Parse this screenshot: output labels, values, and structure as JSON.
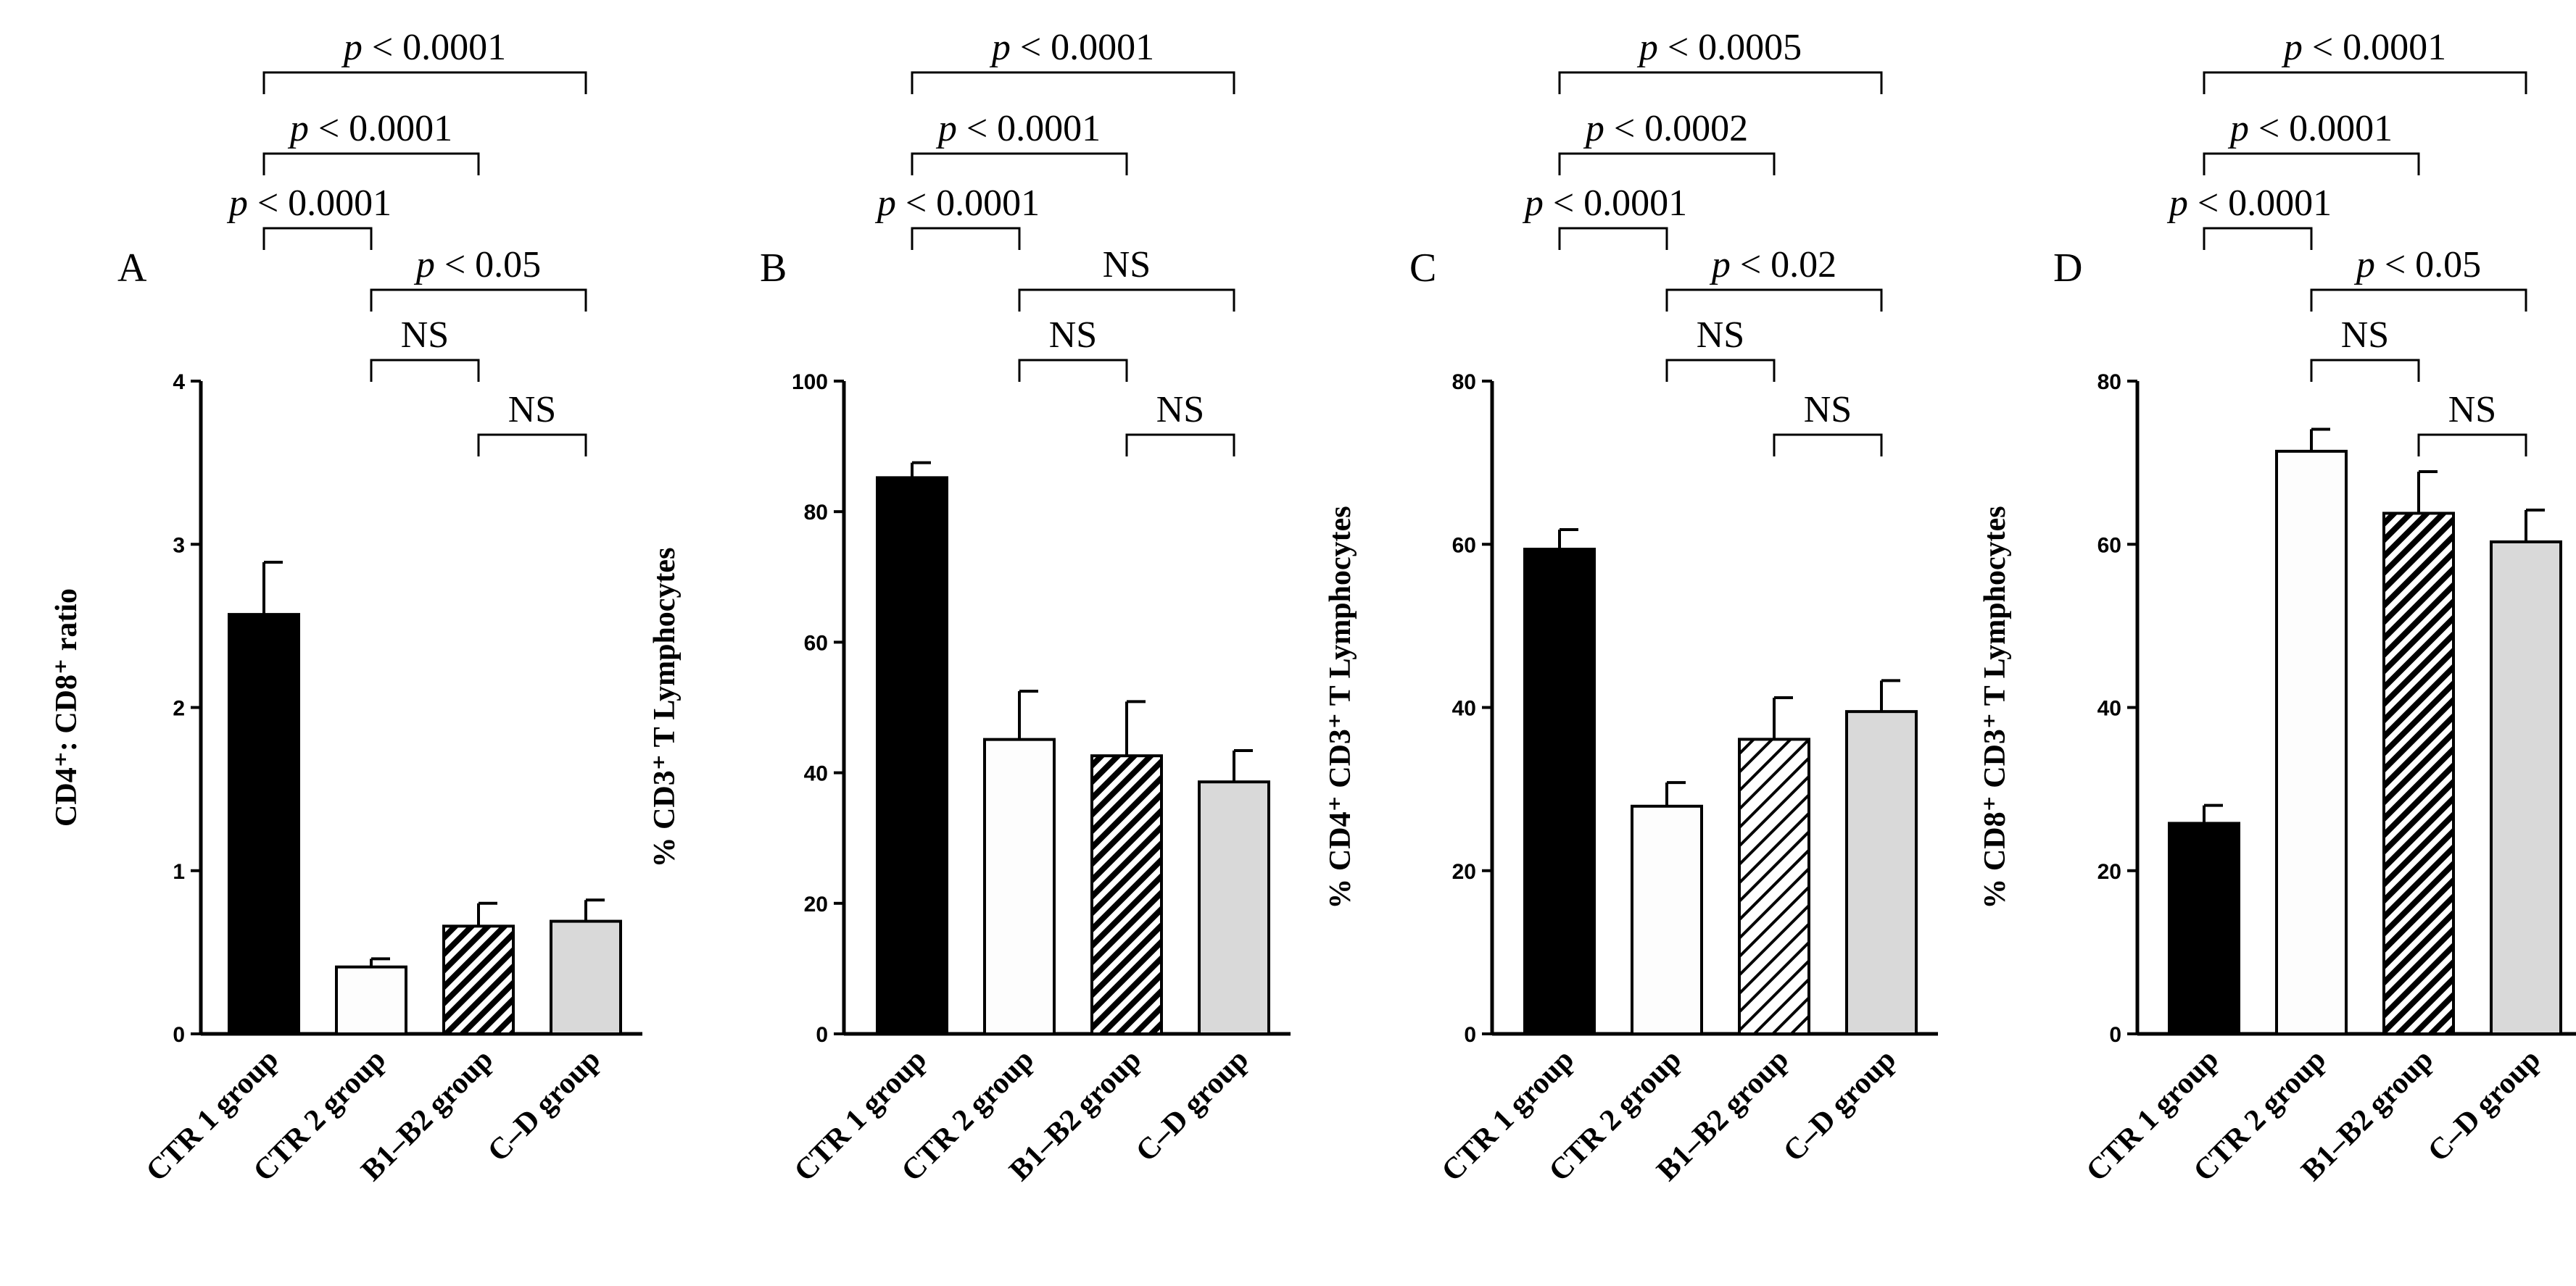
{
  "chart_data": [
    {
      "type": "bar",
      "panel": "A",
      "ylabel": "CD4⁺: CD8⁺ ratio",
      "ylim": [
        0,
        4
      ],
      "yticks": [
        0,
        1,
        2,
        3,
        4
      ],
      "categories": [
        "CTR 1 group",
        "CTR 2 group",
        "B1–B2 group",
        "C–D group"
      ],
      "values": [
        2.57,
        0.41,
        0.66,
        0.69
      ],
      "errors": [
        0.32,
        0.05,
        0.14,
        0.13
      ],
      "comparisons": [
        {
          "from": 0,
          "to": 3,
          "label": "p < 0.0001"
        },
        {
          "from": 0,
          "to": 2,
          "label": "p < 0.0001"
        },
        {
          "from": 0,
          "to": 1,
          "label": "p < 0.0001"
        },
        {
          "from": 1,
          "to": 3,
          "label": "p < 0.05"
        },
        {
          "from": 1,
          "to": 2,
          "label": "NS"
        },
        {
          "from": 2,
          "to": 3,
          "label": "NS"
        }
      ]
    },
    {
      "type": "bar",
      "panel": "B",
      "ylabel": "% CD3⁺ T Lymphocytes",
      "ylim": [
        0,
        100
      ],
      "yticks": [
        0,
        20,
        40,
        60,
        80,
        100
      ],
      "categories": [
        "CTR 1 group",
        "CTR 2 group",
        "B1–B2 group",
        "C–D group"
      ],
      "values": [
        85.2,
        45.1,
        42.6,
        38.6
      ],
      "errors": [
        2.3,
        7.4,
        8.3,
        4.8
      ],
      "comparisons": [
        {
          "from": 0,
          "to": 3,
          "label": "p < 0.0001"
        },
        {
          "from": 0,
          "to": 2,
          "label": "p < 0.0001"
        },
        {
          "from": 0,
          "to": 1,
          "label": "p < 0.0001"
        },
        {
          "from": 1,
          "to": 3,
          "label": "NS"
        },
        {
          "from": 1,
          "to": 2,
          "label": "NS"
        },
        {
          "from": 2,
          "to": 3,
          "label": "NS"
        }
      ]
    },
    {
      "type": "bar",
      "panel": "C",
      "ylabel": "% CD4⁺ CD3⁺ T Lymphocytes",
      "ylim": [
        0,
        80
      ],
      "yticks": [
        0,
        20,
        40,
        60,
        80
      ],
      "categories": [
        "CTR 1 group",
        "CTR 2 group",
        "B1–B2 group",
        "C–D group"
      ],
      "values": [
        59.4,
        27.9,
        36.1,
        39.5
      ],
      "errors": [
        2.4,
        2.9,
        5.1,
        3.8
      ],
      "comparisons": [
        {
          "from": 0,
          "to": 3,
          "label": "p < 0.0005"
        },
        {
          "from": 0,
          "to": 2,
          "label": "p < 0.0002"
        },
        {
          "from": 0,
          "to": 1,
          "label": "p < 0.0001"
        },
        {
          "from": 1,
          "to": 3,
          "label": "p < 0.02"
        },
        {
          "from": 1,
          "to": 2,
          "label": "NS"
        },
        {
          "from": 2,
          "to": 3,
          "label": "NS"
        }
      ]
    },
    {
      "type": "bar",
      "panel": "D",
      "ylabel": "% CD8⁺ CD3⁺ T Lymphocytes",
      "ylim": [
        0,
        80
      ],
      "yticks": [
        0,
        20,
        40,
        60,
        80
      ],
      "categories": [
        "CTR 1 group",
        "CTR 2 group",
        "B1–B2 group",
        "C–D group"
      ],
      "values": [
        25.8,
        71.4,
        63.8,
        60.3
      ],
      "errors": [
        2.2,
        2.7,
        5.1,
        3.9
      ],
      "comparisons": [
        {
          "from": 0,
          "to": 3,
          "label": "p < 0.0001"
        },
        {
          "from": 0,
          "to": 2,
          "label": "p < 0.0001"
        },
        {
          "from": 0,
          "to": 1,
          "label": "p < 0.0001"
        },
        {
          "from": 1,
          "to": 3,
          "label": "p < 0.05"
        },
        {
          "from": 1,
          "to": 2,
          "label": "NS"
        },
        {
          "from": 2,
          "to": 3,
          "label": "NS"
        }
      ]
    }
  ],
  "styles": {
    "bar_fills": [
      "#000000",
      "#fdfdfd",
      "hatch-dense",
      "#d9d9d9"
    ],
    "stroke": "#000000"
  }
}
